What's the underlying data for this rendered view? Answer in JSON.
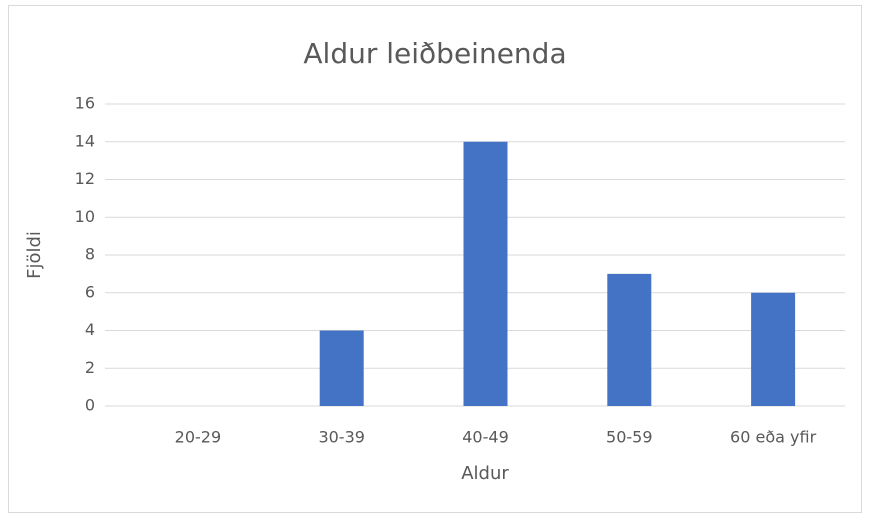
{
  "chart_data": {
    "type": "bar",
    "title": "Aldur leiðbeinenda",
    "x_label": "Aldur",
    "y_label": "Fjöldi",
    "categories": [
      "20-29",
      "30-39",
      "40-49",
      "50-59",
      "60 eða yfir"
    ],
    "values": [
      0,
      4,
      14,
      7,
      6
    ],
    "color": "#4472c4",
    "ylim": [
      0,
      16
    ],
    "yticks": [
      0,
      2,
      4,
      6,
      8,
      10,
      12,
      14,
      16
    ],
    "grid": true
  }
}
